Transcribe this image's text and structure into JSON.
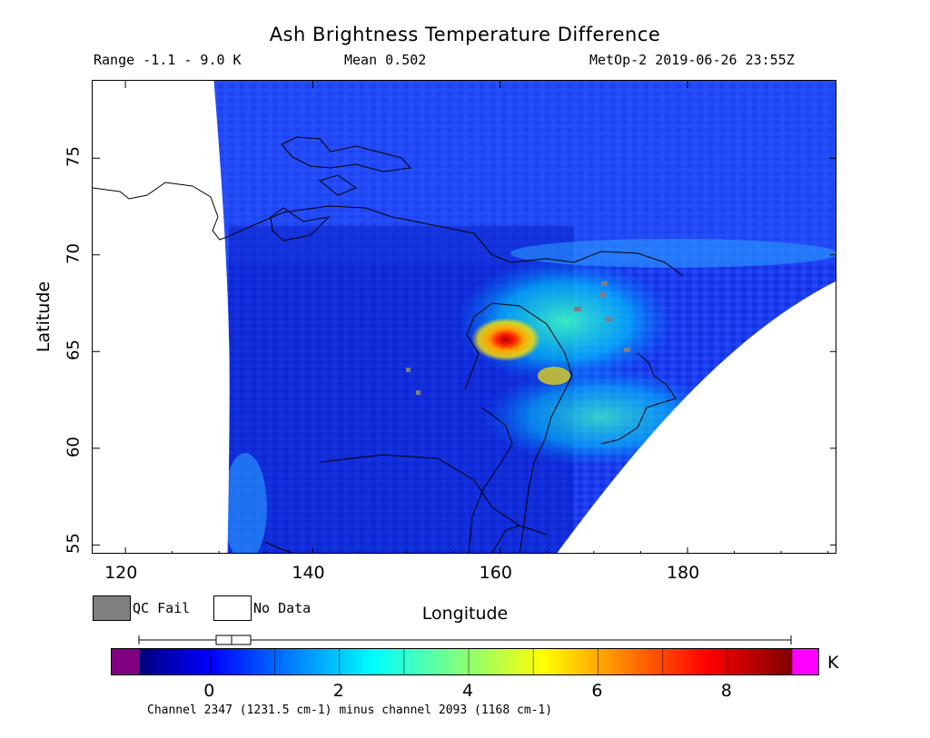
{
  "header": {
    "title": "Ash Brightness Temperature Difference",
    "range": "Range -1.1 - 9.0 K",
    "mean": "Mean 0.502",
    "satellite_time": "MetOp-2 2019-06-26 23:55Z"
  },
  "map": {
    "xlabel": "Longitude",
    "ylabel": "Latitude",
    "lon_range": [
      116.5,
      196
    ],
    "lat_range": [
      54.5,
      79
    ],
    "x_ticks": [
      {
        "v": 120,
        "label": "120"
      },
      {
        "v": 140,
        "label": "140"
      },
      {
        "v": 160,
        "label": "160"
      },
      {
        "v": 180,
        "label": "180"
      }
    ],
    "y_ticks": [
      {
        "v": 55,
        "label": "55"
      },
      {
        "v": 60,
        "label": "60"
      },
      {
        "v": 65,
        "label": "65"
      },
      {
        "v": 70,
        "label": "70"
      },
      {
        "v": 75,
        "label": "75"
      }
    ],
    "ash_max_location": {
      "lon": 161.5,
      "lat": 65.6,
      "value": 9.0
    }
  },
  "legend": {
    "qc_fail": "QC Fail",
    "no_data": "No Data",
    "qc_color": "#7f7f7f"
  },
  "colorbar": {
    "unit": "K",
    "range": [
      -1.1,
      9.0
    ],
    "ticks": [
      {
        "v": 0,
        "label": "0"
      },
      {
        "v": 2,
        "label": "2"
      },
      {
        "v": 4,
        "label": "4"
      },
      {
        "v": 6,
        "label": "6"
      },
      {
        "v": 8,
        "label": "8"
      }
    ],
    "under_color": "#800080",
    "over_color": "#ff00ff",
    "channel_note": "Channel 2347 (1231.5 cm-1) minus channel 2093 (1168 cm-1)"
  }
}
